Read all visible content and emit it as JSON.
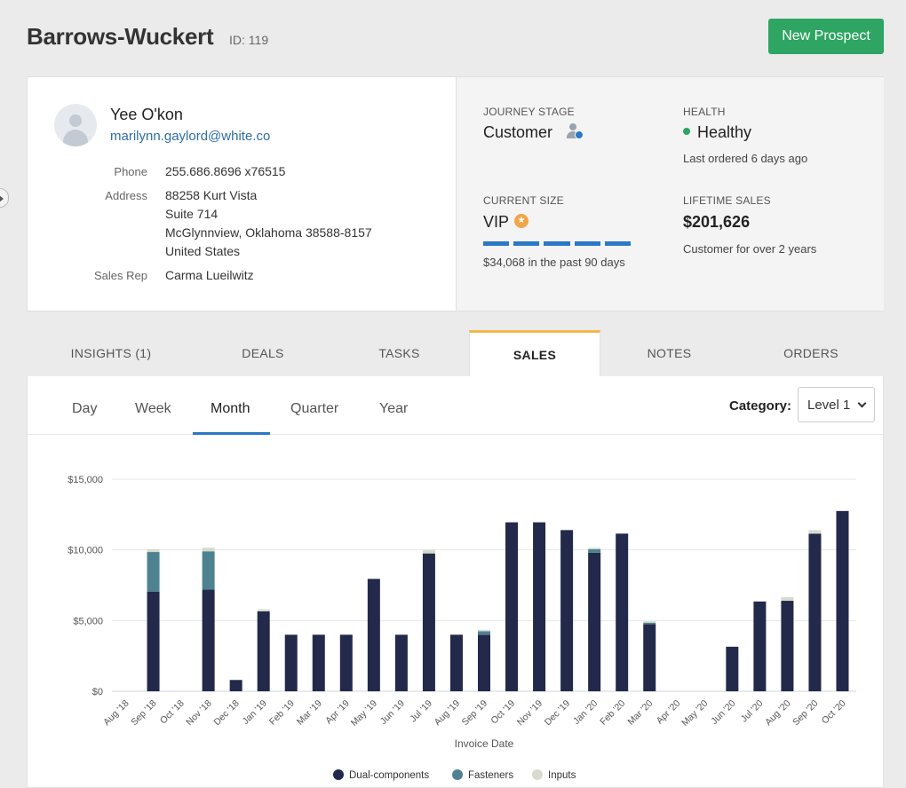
{
  "page": {
    "title": "Barrows-Wuckert",
    "id_label": "ID: 119",
    "new_button": "New Prospect"
  },
  "contact": {
    "name": "Yee O'kon",
    "email": "marilynn.gaylord@white.co",
    "phone_label": "Phone",
    "phone": "255.686.8696 x76515",
    "address_label": "Address",
    "address_lines": [
      "88258 Kurt Vista",
      "Suite 714",
      "McGlynnview, Oklahoma 38588-8157",
      "United States"
    ],
    "rep_label": "Sales Rep",
    "rep": "Carma Lueilwitz"
  },
  "stats": {
    "journey_label": "JOURNEY STAGE",
    "journey_value": "Customer",
    "health_label": "HEALTH",
    "health_value": "Healthy",
    "health_sub": "Last ordered 6 days ago",
    "size_label": "CURRENT SIZE",
    "size_value": "VIP",
    "size_progress_segments": 5,
    "size_sub": "$34,068 in the past 90 days",
    "lifetime_label": "LIFETIME SALES",
    "lifetime_value": "$201,626",
    "lifetime_sub": "Customer for over 2 years"
  },
  "tabs": [
    "INSIGHTS (1)",
    "DEALS",
    "TASKS",
    "SALES",
    "NOTES",
    "ORDERS"
  ],
  "active_tab": "SALES",
  "subtabs": [
    "Day",
    "Week",
    "Month",
    "Quarter",
    "Year"
  ],
  "active_subtab": "Month",
  "category": {
    "label": "Category:",
    "value": "Level 1"
  },
  "colors": {
    "accent_green": "#2ea562",
    "accent_blue": "#2b78c6",
    "tab_active": "#f2b84b",
    "series_dual": "#23294a",
    "series_fasteners": "#4e8290",
    "series_inputs": "#d5dccd"
  },
  "chart_data": {
    "type": "bar",
    "stacked": true,
    "xlabel": "Invoice Date",
    "ylabel": "",
    "ylim": [
      0,
      15000
    ],
    "yticks": [
      0,
      5000,
      10000,
      15000
    ],
    "ytick_labels": [
      "$0",
      "$5,000",
      "$10,000",
      "$15,000"
    ],
    "grid": true,
    "legend_position": "bottom",
    "categories": [
      "Aug '18",
      "Sep '18",
      "Oct '18",
      "Nov '18",
      "Dec '18",
      "Jan '19",
      "Feb '19",
      "Mar '19",
      "Apr '19",
      "May '19",
      "Jun '19",
      "Jul '19",
      "Aug '19",
      "Sep '19",
      "Oct '19",
      "Nov '19",
      "Dec '19",
      "Jan '20",
      "Feb '20",
      "Mar '20",
      "Apr '20",
      "May '20",
      "Jun '20",
      "Jul '20",
      "Aug '20",
      "Sep '20",
      "Oct '20"
    ],
    "series": [
      {
        "name": "Dual-components",
        "color": "#23294a",
        "values": [
          0,
          7050,
          0,
          7200,
          800,
          5650,
          4000,
          4000,
          4000,
          7950,
          4000,
          9750,
          4000,
          4000,
          11950,
          11950,
          11400,
          9800,
          11150,
          4750,
          0,
          0,
          3150,
          6350,
          6400,
          11150,
          12750
        ]
      },
      {
        "name": "Fasteners",
        "color": "#4e8290",
        "values": [
          0,
          2800,
          0,
          2700,
          0,
          0,
          0,
          0,
          0,
          0,
          0,
          0,
          0,
          250,
          0,
          0,
          0,
          250,
          0,
          100,
          0,
          0,
          0,
          0,
          0,
          0,
          0
        ]
      },
      {
        "name": "Inputs",
        "color": "#d5dccd",
        "values": [
          0,
          200,
          0,
          250,
          0,
          150,
          0,
          0,
          0,
          0,
          0,
          250,
          0,
          100,
          0,
          0,
          0,
          100,
          0,
          100,
          0,
          0,
          0,
          0,
          250,
          250,
          0
        ]
      }
    ]
  }
}
